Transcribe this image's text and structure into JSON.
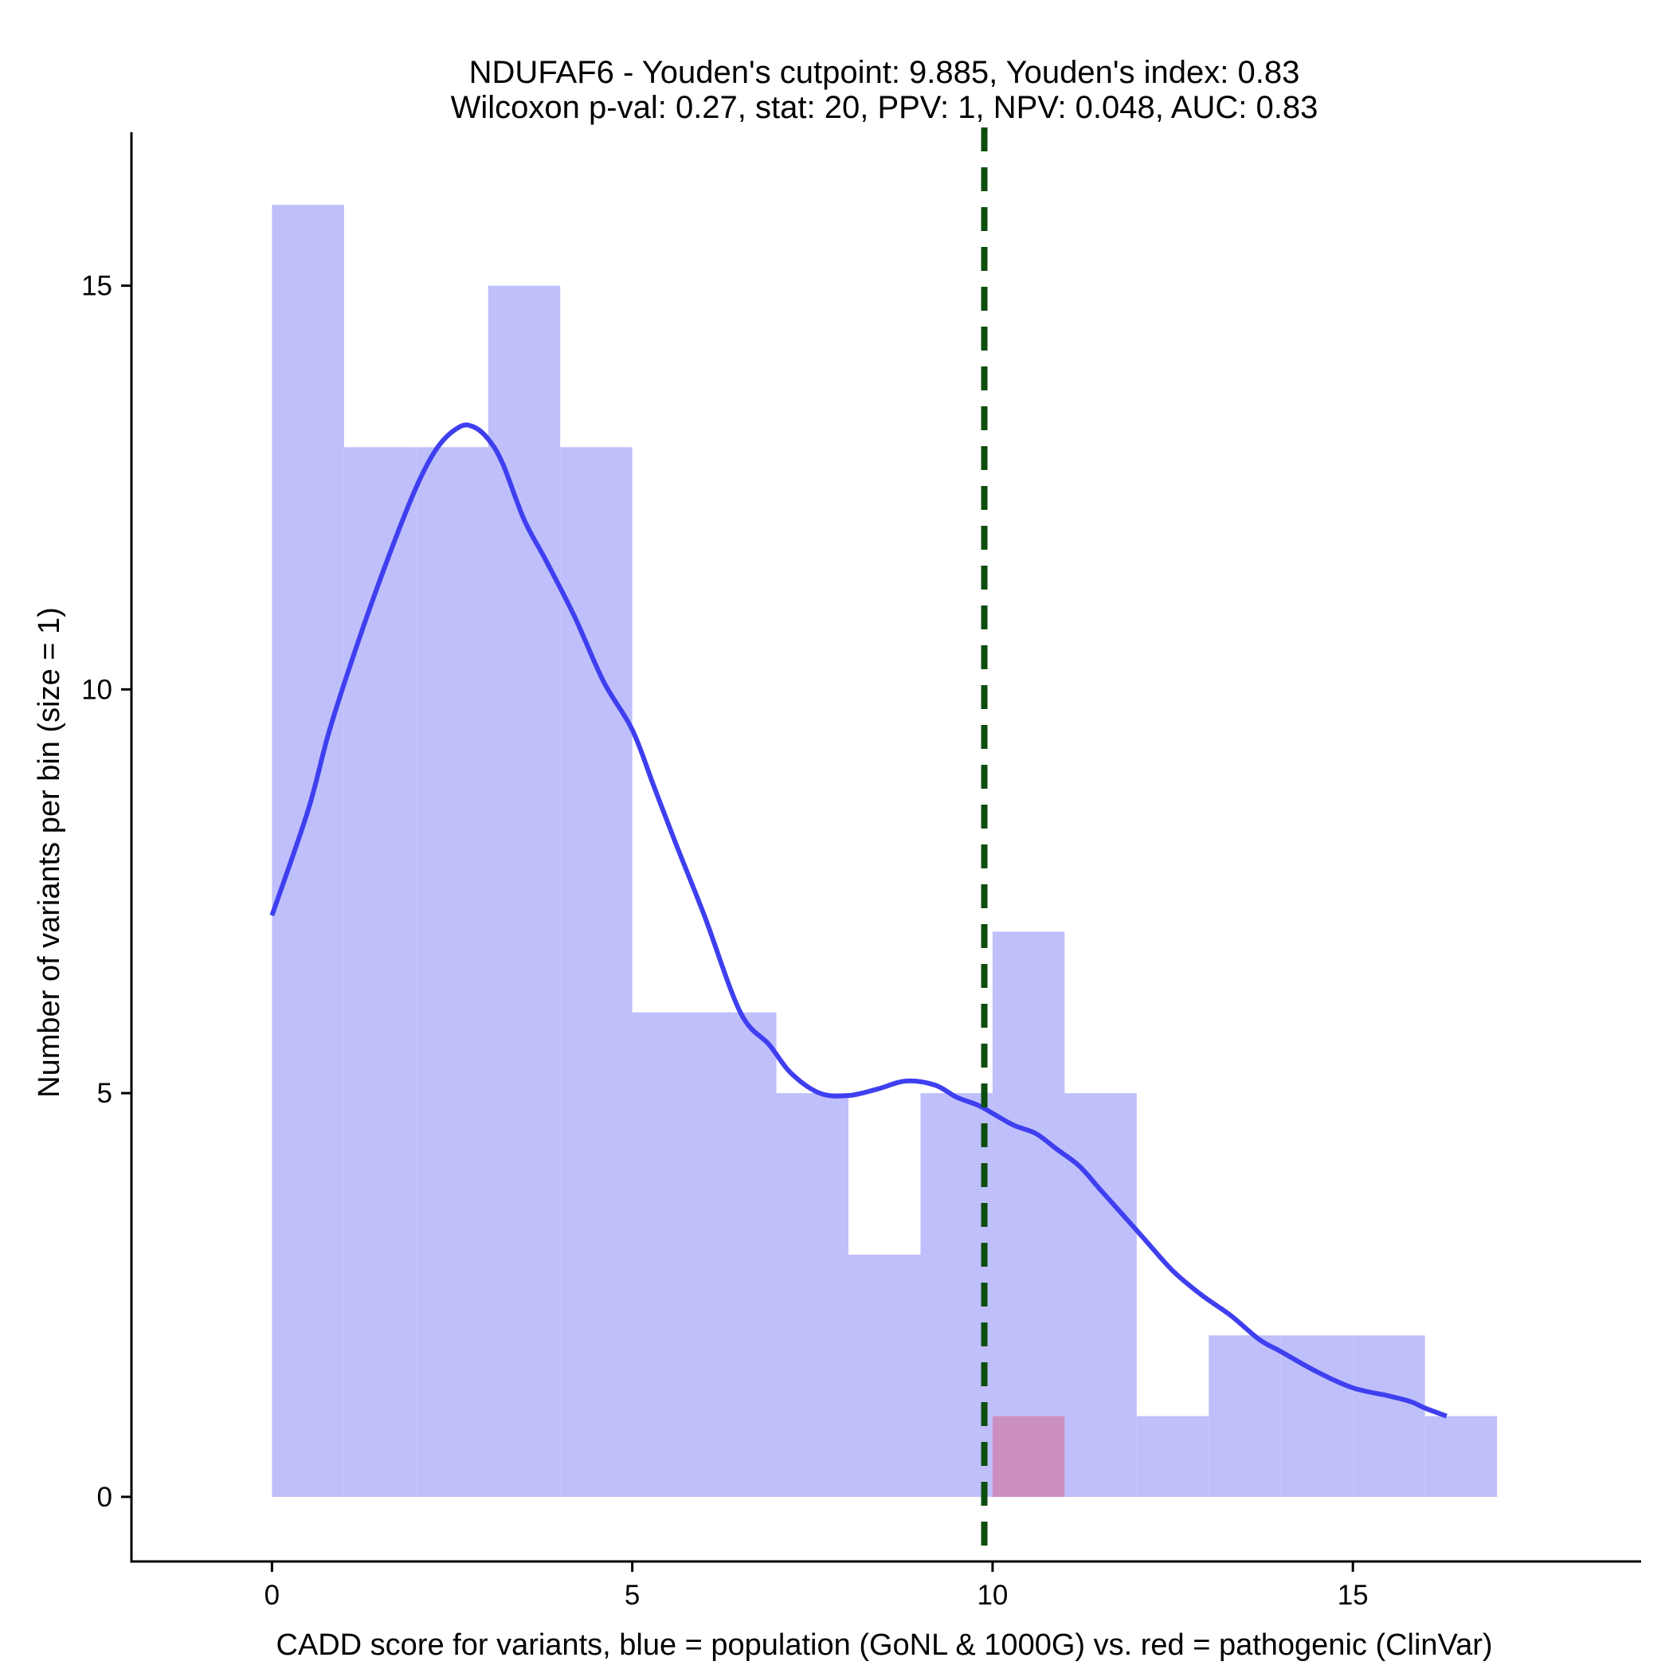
{
  "chart_data": {
    "type": "histogram",
    "title_line1": "NDUFAF6 - Youden's cutpoint: 9.885, Youden's index: 0.83",
    "title_line2": "Wilcoxon p-val: 0.27, stat: 20, PPV: 1, NPV: 0.048, AUC: 0.83",
    "xlabel": "CADD score for variants, blue = population (GoNL & 1000G) vs. red = pathogenic (ClinVar)",
    "ylabel": "Number of variants per bin (size = 1)",
    "xlim": [
      -1.95,
      19
    ],
    "ylim": [
      -0.8,
      16.9
    ],
    "x_ticks": [
      0,
      5,
      10,
      15
    ],
    "x_tick_labels": [
      "0",
      "5",
      "10",
      "15"
    ],
    "y_ticks": [
      0,
      5,
      10,
      15
    ],
    "y_tick_labels": [
      "0",
      "5",
      "10",
      "15"
    ],
    "bin_size": 1,
    "colors": {
      "population_fill": "#bfbffc",
      "pathogenic_fill": "#cc90c0",
      "density_line": "#3f3ff0",
      "cutpoint_line": "#0d4d0d",
      "axis": "#000000"
    },
    "series": [
      {
        "name": "population (GoNL & 1000G)",
        "bins": [
          {
            "x0": 0,
            "x1": 1,
            "count": 16
          },
          {
            "x0": 1,
            "x1": 2,
            "count": 13
          },
          {
            "x0": 2,
            "x1": 3,
            "count": 13
          },
          {
            "x0": 3,
            "x1": 4,
            "count": 15
          },
          {
            "x0": 4,
            "x1": 5,
            "count": 13
          },
          {
            "x0": 5,
            "x1": 6,
            "count": 6
          },
          {
            "x0": 6,
            "x1": 7,
            "count": 6
          },
          {
            "x0": 7,
            "x1": 8,
            "count": 5
          },
          {
            "x0": 8,
            "x1": 9,
            "count": 3
          },
          {
            "x0": 9,
            "x1": 10,
            "count": 5
          },
          {
            "x0": 10,
            "x1": 11,
            "count": 7
          },
          {
            "x0": 11,
            "x1": 12,
            "count": 5
          },
          {
            "x0": 12,
            "x1": 13,
            "count": 1
          },
          {
            "x0": 13,
            "x1": 14,
            "count": 2
          },
          {
            "x0": 14,
            "x1": 15,
            "count": 2
          },
          {
            "x0": 15,
            "x1": 16,
            "count": 2
          },
          {
            "x0": 16,
            "x1": 17,
            "count": 1
          }
        ]
      },
      {
        "name": "pathogenic (ClinVar)",
        "bins": [
          {
            "x0": 10,
            "x1": 11,
            "count": 1
          }
        ]
      }
    ],
    "density_curve": {
      "x": [
        0,
        0.5,
        0.8,
        1.2,
        1.6,
        2.0,
        2.3,
        2.6,
        2.8,
        3.0,
        3.2,
        3.5,
        3.8,
        4.2,
        4.6,
        5.0,
        5.3,
        5.6,
        6.0,
        6.5,
        6.9,
        7.2,
        7.6,
        8.0,
        8.4,
        8.8,
        9.2,
        9.5,
        9.8,
        10.0,
        10.3,
        10.6,
        10.9,
        11.2,
        11.5,
        11.8,
        12.1,
        12.5,
        12.9,
        13.3,
        13.7,
        14.0,
        14.5,
        15.0,
        15.5,
        15.8,
        16.0,
        16.3
      ],
      "y": [
        7.2,
        8.5,
        9.5,
        10.6,
        11.6,
        12.5,
        13.0,
        13.25,
        13.25,
        13.1,
        12.8,
        12.1,
        11.6,
        10.9,
        10.1,
        9.5,
        8.8,
        8.1,
        7.2,
        6.0,
        5.6,
        5.25,
        5.0,
        4.97,
        5.05,
        5.15,
        5.1,
        4.95,
        4.85,
        4.75,
        4.6,
        4.5,
        4.3,
        4.1,
        3.8,
        3.5,
        3.2,
        2.8,
        2.5,
        2.25,
        1.95,
        1.8,
        1.55,
        1.35,
        1.25,
        1.18,
        1.1,
        1.0
      ]
    },
    "cutpoint": 9.885
  }
}
